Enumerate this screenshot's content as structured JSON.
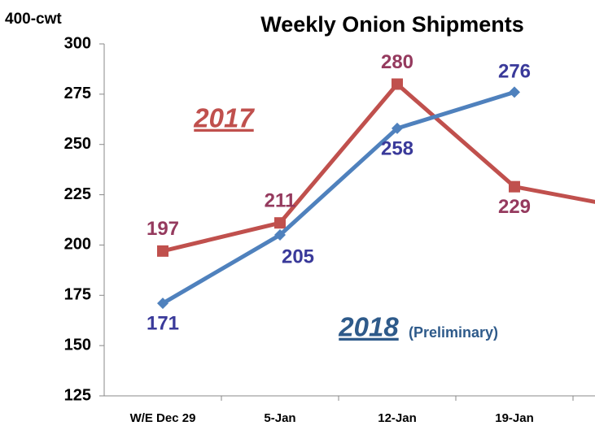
{
  "chart_data": {
    "type": "line",
    "title": "Weekly Onion Shipments",
    "y_label": "400-cwt",
    "categories": [
      "W/E Dec 29",
      "5-Jan",
      "12-Jan",
      "19-Jan",
      null
    ],
    "series": [
      {
        "name": "2017",
        "color": "#c0504d",
        "label_color": "#953a5e",
        "marker": "square",
        "values": [
          197,
          211,
          280,
          229,
          218
        ]
      },
      {
        "name": "2018",
        "color": "#4f81bd",
        "label_color": "#3a3a9a",
        "marker": "diamond",
        "values": [
          171,
          205,
          258,
          276,
          null
        ]
      }
    ],
    "annotations": [
      "2017",
      "2018",
      "(Preliminary)"
    ],
    "ylim": [
      125,
      300
    ],
    "yticks": [
      125,
      150,
      175,
      200,
      225,
      250,
      275,
      300
    ],
    "grid": false
  }
}
